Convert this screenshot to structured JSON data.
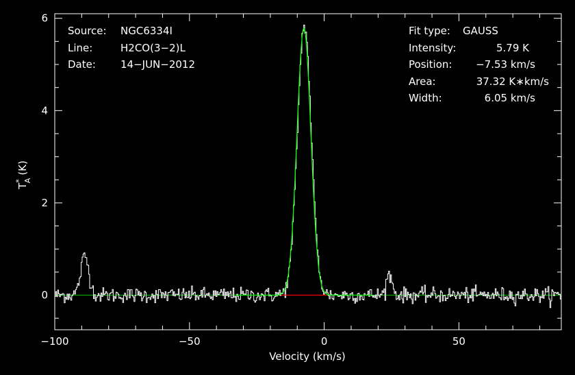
{
  "chart_data": {
    "type": "line",
    "xlabel": "Velocity (km/s)",
    "ylabel": {
      "main": "T",
      "sup": "*",
      "sub": "A",
      "unit": "(K)"
    },
    "xlim": [
      -100,
      88
    ],
    "ylim": [
      -0.75,
      6.1
    ],
    "x_ticks": [
      {
        "value": -100,
        "label": "−100"
      },
      {
        "value": -50,
        "label": "−50"
      },
      {
        "value": 0,
        "label": "0"
      },
      {
        "value": 50,
        "label": "50"
      }
    ],
    "y_ticks": [
      {
        "value": 0,
        "label": "0"
      },
      {
        "value": 2,
        "label": "2"
      },
      {
        "value": 4,
        "label": "4"
      },
      {
        "value": 6,
        "label": "6"
      }
    ],
    "x_minor_step": 10,
    "y_minor_step": 0.5,
    "info_left": [
      {
        "key": "Source:",
        "value": "NGC6334I"
      },
      {
        "key": "Line:",
        "value": "H2CO(3−2)L"
      },
      {
        "key": "Date:",
        "value": "14−JUN−2012"
      }
    ],
    "info_right": [
      {
        "key": "Fit type:",
        "value": "GAUSS"
      },
      {
        "key": "Intensity:",
        "value": "5.79 K"
      },
      {
        "key": "Position:",
        "value": "−7.53 km/s"
      },
      {
        "key": "Area:",
        "value": "37.32 K∗km/s"
      },
      {
        "key": "Width:",
        "value": "6.05 km/s"
      }
    ],
    "fit": {
      "type": "gauss",
      "amplitude": 5.79,
      "center": -7.53,
      "fwhm": 6.05,
      "color": "#00ff00"
    },
    "baseline": {
      "y": 0,
      "x_range": [
        -100,
        88
      ],
      "color": "#00c000"
    },
    "fit_window": {
      "y": 0,
      "x_range": [
        -16,
        1
      ],
      "color": "#ff0000"
    },
    "spectrum": {
      "color": "#ffffff",
      "channel_step": 0.35,
      "noise_rms": 0.08,
      "components": [
        {
          "center": -7.53,
          "amplitude": 5.85,
          "fwhm": 6.05
        },
        {
          "center": -89,
          "amplitude": 0.85,
          "fwhm": 3.5
        },
        {
          "center": 24,
          "amplitude": 0.45,
          "fwhm": 2.5
        }
      ]
    }
  }
}
